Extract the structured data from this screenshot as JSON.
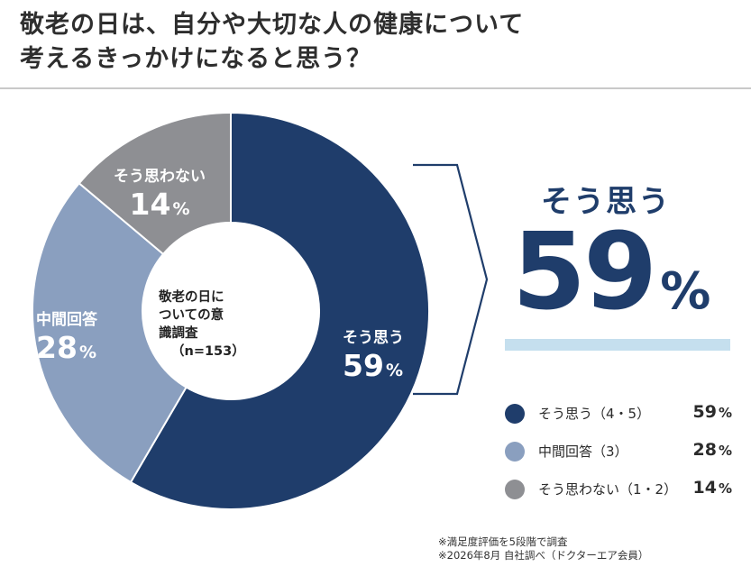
{
  "title_line1": "敬老の日は、自分や大切な人の健康について",
  "title_line2": "考えるきっかけになると思う？",
  "center_label": {
    "line1": "敬老の日に",
    "line2": "ついての意",
    "line3": "識調査",
    "n": "（n=153）"
  },
  "callout": {
    "label": "そう思う",
    "value": "59",
    "unit": "%"
  },
  "notes": [
    "※満足度評価を5段階で調査",
    "※2026年8月 自社調べ（ドクターエア会員）"
  ],
  "chart_data": {
    "type": "pie",
    "donut": true,
    "start_angle_deg": 0,
    "direction": "clockwise",
    "slices": [
      {
        "key": "yes",
        "label": "そう思う",
        "legend": "そう思う（4・5）",
        "value": 59,
        "display": "59",
        "unit": "%",
        "color": "#1f3d6b"
      },
      {
        "key": "mid",
        "label": "中間回答",
        "legend": "中間回答（3）",
        "value": 28,
        "display": "28",
        "unit": "%",
        "color": "#8a9fbf"
      },
      {
        "key": "no",
        "label": "そう思わない",
        "legend": "そう思わない（1・2）",
        "value": 14,
        "display": "14",
        "unit": "%",
        "color": "#8e8f93"
      }
    ]
  }
}
